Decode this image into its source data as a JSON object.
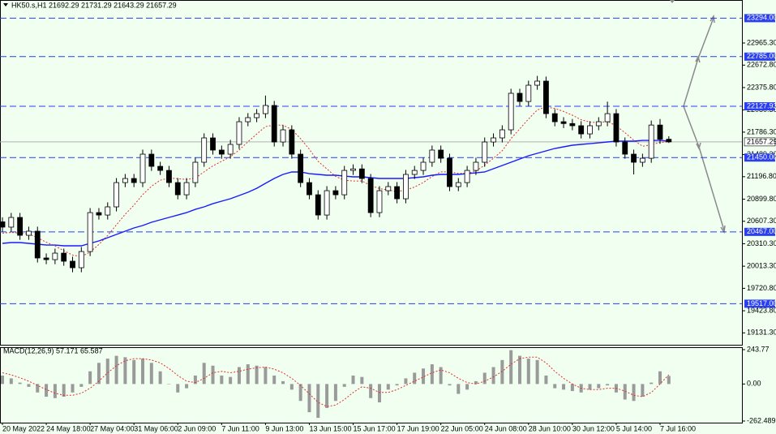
{
  "chart_data": [
    {
      "type": "candlestick",
      "title": "HK50.s,H1  21692.29 21731.29 21643.29 21657.29",
      "categories": [
        "20 May 2022",
        null,
        null,
        null,
        null,
        "24 May 18:00",
        null,
        null,
        null,
        null,
        "27 May 04:00",
        null,
        null,
        null,
        null,
        "31 May 06:00",
        null,
        null,
        null,
        null,
        "2 Jun 09:00",
        null,
        null,
        null,
        null,
        "7 Jun 11:00",
        null,
        null,
        null,
        null,
        "9 Jun 13:00",
        null,
        null,
        null,
        null,
        "13 Jun 15:00",
        null,
        null,
        null,
        null,
        "15 Jun 17:00",
        null,
        null,
        null,
        null,
        "17 Jun 19:00",
        null,
        null,
        null,
        null,
        "22 Jun 05:00",
        null,
        null,
        null,
        null,
        "24 Jun 08:00",
        null,
        null,
        null,
        null,
        "28 Jun 10:00",
        null,
        null,
        null,
        null,
        "30 Jun 12:00",
        null,
        null,
        null,
        null,
        "5 Jul 14:00",
        null,
        null,
        null,
        null,
        "7 Jul 16:00",
        null
      ],
      "open": [
        20600,
        20530,
        20658,
        20422,
        20476,
        20122,
        20100,
        20186,
        20079,
        19993,
        20207,
        20722,
        20690,
        20798,
        21119,
        21173,
        21119,
        21495,
        21334,
        21280,
        21119,
        20958,
        21119,
        21388,
        21710,
        21549,
        21495,
        21624,
        21924,
        21978,
        22031,
        22139,
        21656,
        21817,
        21495,
        21119,
        20958,
        20690,
        21012,
        20958,
        21280,
        21300,
        21173,
        20722,
        21012,
        21066,
        20905,
        21227,
        21280,
        21388,
        21549,
        21441,
        21066,
        21119,
        21280,
        21388,
        21656,
        21710,
        21817,
        22300,
        22192,
        22407,
        22461,
        22031,
        21924,
        21900,
        21871,
        21763,
        21871,
        21924,
        22031,
        21656,
        21495,
        21388,
        21441,
        21880,
        21692.29
      ],
      "high": [
        20660,
        20718,
        20718,
        20536,
        20536,
        20182,
        20246,
        20246,
        20139,
        20267,
        20782,
        20782,
        20858,
        21179,
        21233,
        21233,
        21555,
        21555,
        21394,
        21340,
        21179,
        21179,
        21448,
        21770,
        21770,
        21609,
        21684,
        21984,
        22038,
        22091,
        22270,
        22199,
        21877,
        21877,
        21555,
        21179,
        21018,
        21072,
        21072,
        21340,
        21360,
        21360,
        21233,
        21072,
        21126,
        21126,
        21287,
        21340,
        21448,
        21609,
        21609,
        21501,
        21179,
        21340,
        21448,
        21716,
        21770,
        21877,
        22360,
        22360,
        22467,
        22530,
        22521,
        22091,
        21984,
        21960,
        21931,
        21931,
        21984,
        22190,
        22091,
        21716,
        21555,
        21501,
        21940,
        21960,
        21731.29
      ],
      "low": [
        20470,
        20470,
        20362,
        20362,
        20062,
        20040,
        20040,
        20019,
        19933,
        19933,
        20147,
        20630,
        20630,
        20738,
        21059,
        21059,
        21059,
        21274,
        21220,
        21059,
        20898,
        20898,
        21059,
        21328,
        21489,
        21435,
        21435,
        21564,
        21864,
        21918,
        21971,
        21596,
        21596,
        21435,
        21059,
        20898,
        20630,
        20630,
        20898,
        20898,
        21220,
        21113,
        20662,
        20662,
        20952,
        20845,
        20845,
        21167,
        21220,
        21328,
        21381,
        21006,
        21006,
        21059,
        21220,
        21328,
        21596,
        21650,
        21757,
        22132,
        22132,
        22347,
        21971,
        21864,
        21840,
        21811,
        21703,
        21703,
        21811,
        21864,
        21596,
        21435,
        21227,
        21328,
        21381,
        21632,
        21643.29
      ],
      "close": [
        20530,
        20658,
        20422,
        20476,
        20122,
        20100,
        20186,
        20079,
        19993,
        20207,
        20722,
        20690,
        20798,
        21119,
        21173,
        21119,
        21495,
        21334,
        21280,
        21119,
        20958,
        21119,
        21388,
        21710,
        21549,
        21495,
        21624,
        21924,
        21978,
        22031,
        22139,
        21656,
        21817,
        21495,
        21119,
        20958,
        20690,
        21012,
        20958,
        21280,
        21300,
        21173,
        20722,
        21012,
        21066,
        20905,
        21227,
        21280,
        21388,
        21549,
        21441,
        21066,
        21119,
        21280,
        21388,
        21656,
        21710,
        21817,
        22300,
        22192,
        22407,
        22461,
        22031,
        21924,
        21900,
        21871,
        21763,
        21871,
        21924,
        22031,
        21656,
        21495,
        21388,
        21441,
        21880,
        21692.29,
        21657.29
      ],
      "up_color": "#ffffff",
      "down_color": "#000000",
      "moving_averages": [
        {
          "color": "#e03030",
          "dashed": true,
          "values": [
            20450,
            20460,
            20450,
            20440,
            20390,
            20330,
            20280,
            20220,
            20160,
            20140,
            20200,
            20300,
            20420,
            20560,
            20700,
            20820,
            20960,
            21070,
            21150,
            21180,
            21170,
            21160,
            21180,
            21260,
            21340,
            21400,
            21460,
            21550,
            21660,
            21760,
            21860,
            21880,
            21880,
            21820,
            21700,
            21560,
            21400,
            21300,
            21200,
            21150,
            21140,
            21140,
            21080,
            21040,
            21020,
            21000,
            21020,
            21060,
            21120,
            21200,
            21260,
            21260,
            21240,
            21240,
            21270,
            21350,
            21440,
            21540,
            21700,
            21830,
            21960,
            22080,
            22120,
            22100,
            22060,
            22010,
            21950,
            21920,
            21910,
            21930,
            21870,
            21780,
            21680,
            21600,
            21620,
            21650,
            21660
          ]
        },
        {
          "color": "#1a1aff",
          "dashed": false,
          "values": [
            20315,
            20326,
            20326,
            20315,
            20304,
            20293,
            20293,
            20283,
            20283,
            20283,
            20315,
            20347,
            20390,
            20433,
            20476,
            20519,
            20551,
            20594,
            20626,
            20658,
            20690,
            20722,
            20765,
            20798,
            20840,
            20873,
            20905,
            20948,
            20991,
            21044,
            21109,
            21173,
            21227,
            21259,
            21259,
            21237,
            21227,
            21216,
            21216,
            21205,
            21195,
            21195,
            21184,
            21173,
            21173,
            21173,
            21173,
            21184,
            21195,
            21216,
            21227,
            21227,
            21227,
            21237,
            21248,
            21259,
            21302,
            21345,
            21388,
            21431,
            21474,
            21506,
            21538,
            21570,
            21592,
            21613,
            21624,
            21634,
            21645,
            21656,
            21667,
            21667,
            21667,
            21677,
            21677,
            21677,
            21667
          ]
        }
      ],
      "ylim": [
        18974,
        23534
      ],
      "yticks": [
        {
          "value": 22965.3,
          "label": "22965.30"
        },
        {
          "value": 22672.8,
          "label": "22672.80"
        },
        {
          "value": 22375.8,
          "label": "22375.80"
        },
        {
          "value": 22080.3,
          "label": "22080.30"
        },
        {
          "value": 21786.3,
          "label": "21786.30"
        },
        {
          "value": 21489.3,
          "label": "21489.30"
        },
        {
          "value": 21196.8,
          "label": "21196.80"
        },
        {
          "value": 20899.8,
          "label": "20899.80"
        },
        {
          "value": 20607.3,
          "label": "20607.30"
        },
        {
          "value": 20310.3,
          "label": "20310.30"
        },
        {
          "value": 20013.3,
          "label": "20013.30"
        },
        {
          "value": 19720.8,
          "label": "19720.80"
        },
        {
          "value": 19423.8,
          "label": "19423.80"
        },
        {
          "value": 19131.3,
          "label": "19131.30"
        }
      ],
      "levels": [
        {
          "value": 23294,
          "label": "23294.00"
        },
        {
          "value": 22785,
          "label": "22785.00"
        },
        {
          "value": 22127.93,
          "label": "22127.93"
        },
        {
          "value": 21450,
          "label": "21450.00"
        },
        {
          "value": 20467,
          "label": "20467.00"
        },
        {
          "value": 19517,
          "label": "19517.00"
        }
      ],
      "level_color": "#2a3ff0",
      "last_price": 21657.29
    },
    {
      "type": "macd",
      "title": "MACD(12,26,9) 57.171 65.587",
      "ylim": [
        -262.489,
        243.77
      ],
      "yticks": [
        243.77,
        {
          "value": 0,
          "label": "0.00"
        },
        -262.489
      ],
      "series": [
        {
          "style": "histogram",
          "color": "#9a9a9a",
          "values": [
            60,
            40,
            10,
            -20,
            -60,
            -90,
            -100,
            -90,
            -60,
            -20,
            90,
            150,
            180,
            200,
            190,
            170,
            180,
            150,
            90,
            0,
            -60,
            -30,
            60,
            150,
            130,
            60,
            50,
            120,
            140,
            130,
            120,
            60,
            20,
            -40,
            -120,
            -200,
            -240,
            -170,
            -120,
            -20,
            60,
            50,
            -100,
            -130,
            -40,
            -10,
            40,
            80,
            110,
            140,
            120,
            -10,
            -70,
            -40,
            20,
            80,
            120,
            170,
            240,
            200,
            180,
            170,
            60,
            -30,
            -40,
            -50,
            -60,
            -40,
            -30,
            -10,
            -60,
            -110,
            -120,
            -90,
            10,
            90,
            57.171
          ]
        },
        {
          "style": "line",
          "color": "#e03030",
          "values": [
            80,
            65,
            45,
            20,
            -10,
            -40,
            -65,
            -80,
            -80,
            -65,
            -30,
            20,
            80,
            130,
            165,
            180,
            180,
            170,
            150,
            110,
            60,
            20,
            10,
            40,
            80,
            90,
            80,
            90,
            105,
            115,
            120,
            105,
            80,
            40,
            -10,
            -70,
            -130,
            -160,
            -150,
            -110,
            -60,
            -20,
            -30,
            -60,
            -60,
            -40,
            -10,
            20,
            50,
            80,
            100,
            80,
            40,
            10,
            0,
            20,
            50,
            90,
            140,
            180,
            190,
            190,
            150,
            90,
            40,
            0,
            -30,
            -40,
            -40,
            -30,
            -30,
            -50,
            -80,
            -90,
            -60,
            0,
            65.587
          ]
        }
      ]
    }
  ]
}
